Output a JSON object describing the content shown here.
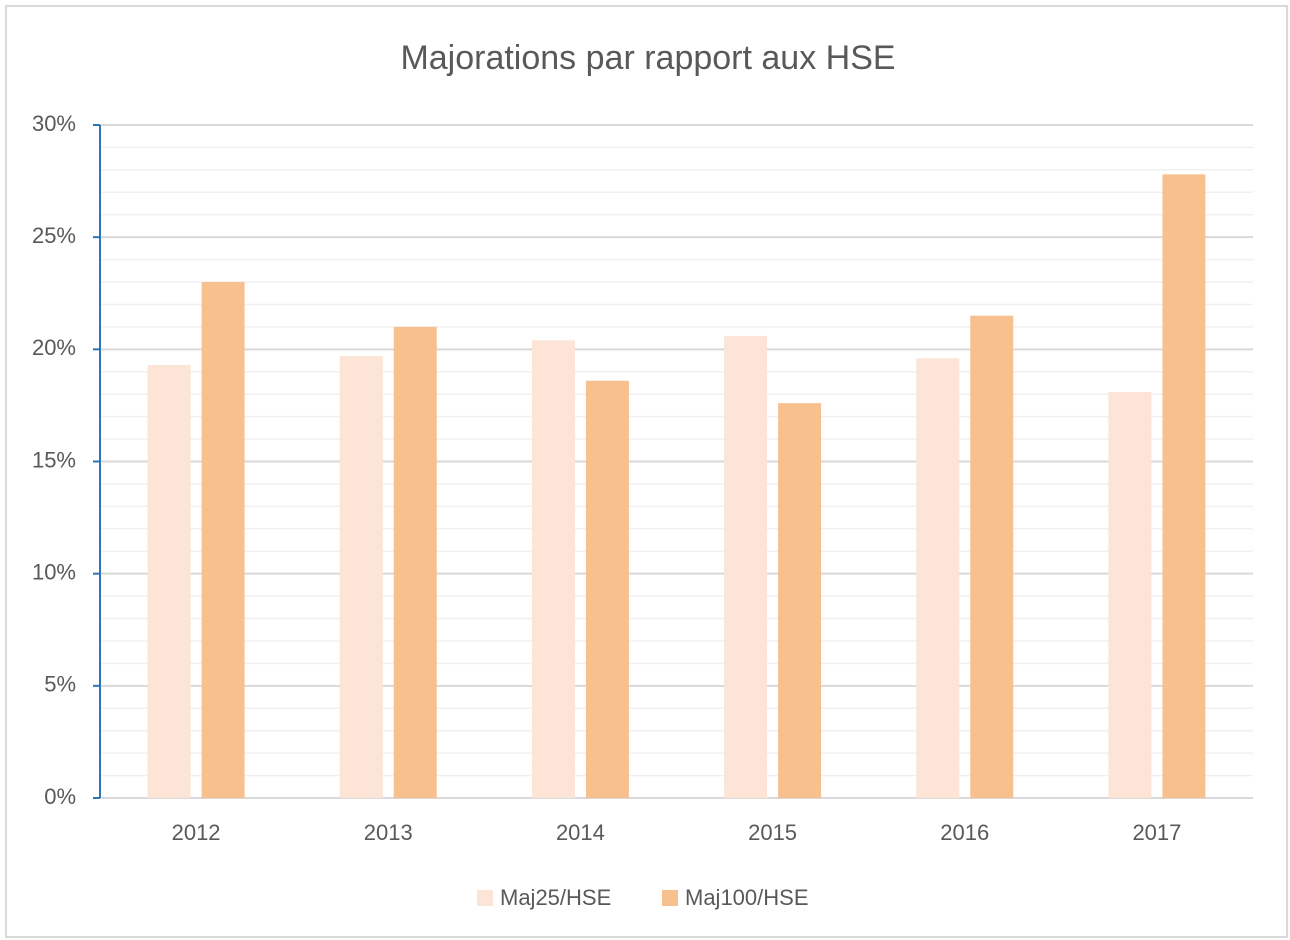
{
  "chart_data": {
    "type": "bar",
    "title": "Majorations par rapport aux HSE",
    "categories": [
      "2012",
      "2013",
      "2014",
      "2015",
      "2016",
      "2017"
    ],
    "series": [
      {
        "name": "Maj25/HSE",
        "color": "#fce4d6",
        "values": [
          19.3,
          19.7,
          20.4,
          20.6,
          19.6,
          18.1
        ]
      },
      {
        "name": "Maj100/HSE",
        "color": "#f8bf8f",
        "values": [
          23.0,
          21.0,
          18.6,
          17.6,
          21.5,
          27.8
        ]
      }
    ],
    "ylim": [
      0,
      30
    ],
    "yticks": [
      {
        "value": 0,
        "label": "0%"
      },
      {
        "value": 5,
        "label": "5%"
      },
      {
        "value": 10,
        "label": "10%"
      },
      {
        "value": 15,
        "label": "15%"
      },
      {
        "value": 20,
        "label": "20%"
      },
      {
        "value": 25,
        "label": "25%"
      },
      {
        "value": 30,
        "label": "30%"
      }
    ],
    "grid": true,
    "minor_grid": true,
    "legend": "bottom"
  }
}
